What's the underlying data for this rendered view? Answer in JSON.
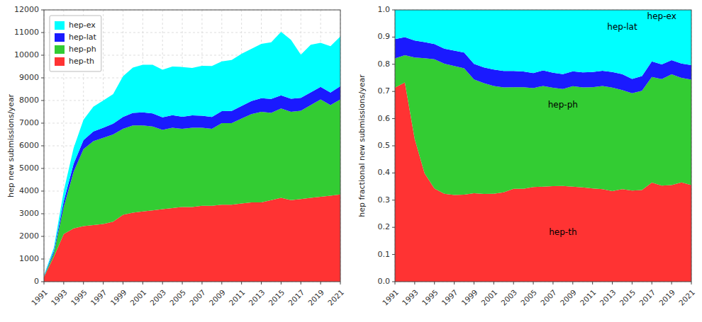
{
  "chart_data": [
    {
      "type": "area",
      "stacked": true,
      "ylabel": "hep new submissions/year",
      "x": [
        1991,
        1992,
        1993,
        1994,
        1995,
        1996,
        1997,
        1998,
        1999,
        2000,
        2001,
        2002,
        2003,
        2004,
        2005,
        2006,
        2007,
        2008,
        2009,
        2010,
        2011,
        2012,
        2013,
        2014,
        2015,
        2016,
        2017,
        2018,
        2019,
        2020,
        2021
      ],
      "series": [
        {
          "name": "hep-th",
          "color": "#ff3333",
          "values": [
            200,
            1100,
            2100,
            2350,
            2450,
            2500,
            2550,
            2650,
            2950,
            3050,
            3100,
            3150,
            3200,
            3250,
            3300,
            3300,
            3350,
            3350,
            3400,
            3400,
            3450,
            3500,
            3500,
            3600,
            3700,
            3600,
            3650,
            3700,
            3750,
            3800,
            3850
          ]
        },
        {
          "name": "hep-ph",
          "color": "#33cc33",
          "values": [
            30,
            150,
            1200,
            2500,
            3400,
            3700,
            3800,
            3850,
            3800,
            3850,
            3800,
            3700,
            3500,
            3550,
            3450,
            3500,
            3450,
            3400,
            3600,
            3600,
            3750,
            3900,
            4000,
            3850,
            3950,
            3900,
            3900,
            4100,
            4300,
            4000,
            4200
          ]
        },
        {
          "name": "hep-lat",
          "color": "#1a1aff",
          "values": [
            20,
            100,
            250,
            350,
            400,
            430,
            450,
            480,
            520,
            550,
            580,
            580,
            560,
            550,
            530,
            540,
            530,
            520,
            530,
            540,
            560,
            580,
            600,
            620,
            580,
            580,
            570,
            560,
            550,
            550,
            580
          ]
        },
        {
          "name": "hep-ex",
          "color": "#00ffff",
          "values": [
            30,
            150,
            450,
            700,
            900,
            1100,
            1200,
            1300,
            1800,
            2000,
            2100,
            2150,
            2100,
            2150,
            2200,
            2100,
            2200,
            2250,
            2200,
            2250,
            2300,
            2300,
            2400,
            2500,
            2800,
            2600,
            1900,
            2100,
            1950,
            2050,
            2200
          ]
        }
      ],
      "xlim": [
        1991,
        2021
      ],
      "xticks": [
        1991,
        1993,
        1995,
        1997,
        1999,
        2001,
        2003,
        2005,
        2007,
        2009,
        2011,
        2013,
        2015,
        2017,
        2019,
        2021
      ],
      "ylim": [
        0,
        12000
      ],
      "yticks": [
        0,
        1000,
        2000,
        3000,
        4000,
        5000,
        6000,
        7000,
        8000,
        9000,
        10000,
        11000,
        12000
      ],
      "grid": true,
      "legend": "upper-left"
    },
    {
      "type": "area",
      "stacked": true,
      "ylabel": "hep fractional new submissions/year",
      "x": [
        1991,
        1992,
        1993,
        1994,
        1995,
        1996,
        1997,
        1998,
        1999,
        2000,
        2001,
        2002,
        2003,
        2004,
        2005,
        2006,
        2007,
        2008,
        2009,
        2010,
        2011,
        2012,
        2013,
        2014,
        2015,
        2016,
        2017,
        2018,
        2019,
        2020,
        2021
      ],
      "series": [
        {
          "name": "hep-th",
          "color": "#ff3333",
          "values": [
            0.7143,
            0.7333,
            0.525,
            0.3983,
            0.3427,
            0.3234,
            0.31875,
            0.32,
            0.3252,
            0.3228,
            0.3236,
            0.3288,
            0.3419,
            0.3421,
            0.3481,
            0.34958,
            0.3515,
            0.3519,
            0.3494,
            0.3473,
            0.3429,
            0.3405,
            0.3333,
            0.3406,
            0.3354,
            0.3371,
            0.3643,
            0.3537,
            0.3555,
            0.3654,
            0.3555
          ]
        },
        {
          "name": "hep-ph",
          "color": "#33cc33",
          "values": [
            0.1071,
            0.1,
            0.3,
            0.4237,
            0.4755,
            0.4787,
            0.475,
            0.465,
            0.419,
            0.4074,
            0.3967,
            0.3862,
            0.3739,
            0.3737,
            0.3639,
            0.37076,
            0.362,
            0.3571,
            0.37,
            0.3677,
            0.3728,
            0.3794,
            0.381,
            0.3642,
            0.3581,
            0.3652,
            0.3892,
            0.392,
            0.4076,
            0.3846,
            0.3878
          ]
        },
        {
          "name": "hep-lat",
          "color": "#1a1aff",
          "values": [
            0.0714,
            0.0667,
            0.0625,
            0.0593,
            0.0559,
            0.0556,
            0.05625,
            0.058,
            0.0573,
            0.0582,
            0.0605,
            0.0605,
            0.0598,
            0.0579,
            0.0559,
            0.0572,
            0.0556,
            0.0546,
            0.0545,
            0.0552,
            0.0557,
            0.0564,
            0.0571,
            0.0587,
            0.0526,
            0.0543,
            0.0569,
            0.0535,
            0.0521,
            0.0529,
            0.0536
          ]
        },
        {
          "name": "hep-ex",
          "color": "#00ffff",
          "values": [
            0.1071,
            0.1,
            0.1125,
            0.1186,
            0.1259,
            0.1423,
            0.15,
            0.157,
            0.1985,
            0.2116,
            0.2192,
            0.2244,
            0.2244,
            0.2263,
            0.2321,
            0.22246,
            0.2308,
            0.2363,
            0.2261,
            0.2298,
            0.2286,
            0.2237,
            0.2286,
            0.2365,
            0.2539,
            0.2434,
            0.1896,
            0.2008,
            0.1848,
            0.1971,
            0.2031
          ]
        }
      ],
      "xlim": [
        1991,
        2021
      ],
      "xticks": [
        1991,
        1993,
        1995,
        1997,
        1999,
        2001,
        2003,
        2005,
        2007,
        2009,
        2011,
        2013,
        2015,
        2017,
        2019,
        2021
      ],
      "ylim": [
        0,
        1
      ],
      "yticks": [
        {
          "value": 0,
          "label": "0.0"
        },
        0.1,
        0.2,
        0.3,
        0.4,
        0.5,
        0.6,
        0.7,
        0.8,
        0.9,
        {
          "value": 1,
          "label": "1.0"
        }
      ],
      "grid": true,
      "annotations": [
        {
          "text": "hep-ex",
          "x": 2018,
          "y": 0.975
        },
        {
          "text": "hep-lat",
          "x": 2014,
          "y": 0.935
        },
        {
          "text": "hep-ph",
          "x": 2008,
          "y": 0.65
        },
        {
          "text": "hep-th",
          "x": 2008,
          "y": 0.18
        }
      ]
    }
  ]
}
